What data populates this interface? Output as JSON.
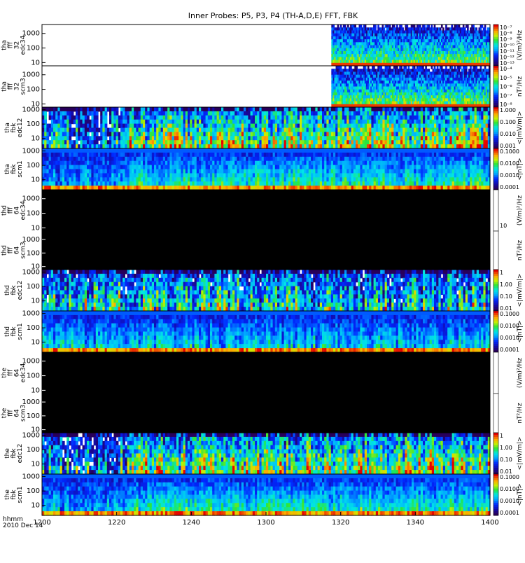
{
  "chart_data": {
    "type": "heatmap",
    "title": "Inner Probes: P5, P3, P4 (TH-A,D,E) FFT, FBK",
    "time_unit_label": "hhmm",
    "date_label": "2010 Dec 14",
    "x_ticks": [
      "1200",
      "1220",
      "1240",
      "1300",
      "1320",
      "1340",
      "1400"
    ],
    "x_range_min": [
      0,
      120
    ],
    "panels": [
      {
        "label": [
          "tha",
          "fff",
          "32",
          "edc34"
        ],
        "y_ticks": [
          "10",
          "100",
          "1000"
        ],
        "y_range_hz": [
          6,
          4096
        ],
        "colorbar_label": "(V/m)²/Hz",
        "colorbar_ticks": [
          "10⁻¹³",
          "10⁻¹²",
          "10⁻¹¹",
          "10⁻¹⁰",
          "10⁻⁹",
          "10⁻⁸",
          "10⁻⁷"
        ],
        "data_start_min": 77.5,
        "black": false,
        "scale": "log"
      },
      {
        "label": [
          "tha",
          "fff",
          "32",
          "scm3"
        ],
        "y_ticks": [
          "10",
          "100",
          "1000"
        ],
        "y_range_hz": [
          6,
          4096
        ],
        "colorbar_label": "nT²/Hz",
        "colorbar_ticks": [
          "10⁻⁸",
          "10⁻⁷",
          "10⁻⁶",
          "10⁻⁵",
          "10⁻⁴"
        ],
        "data_start_min": 77.5,
        "black": false,
        "scale": "log"
      },
      {
        "label": [
          "tha",
          "fbk",
          "edc12"
        ],
        "y_ticks": [
          "10",
          "100",
          "1000"
        ],
        "y_range_hz": [
          2,
          1500
        ],
        "colorbar_label": "<|mV/m|>",
        "colorbar_ticks": [
          "0.001",
          "0.010",
          "0.100",
          "1.000"
        ],
        "data_start_min": 0,
        "black": false,
        "scale": "log"
      },
      {
        "label": [
          "tha",
          "fbk",
          "scm1"
        ],
        "y_ticks": [
          "10",
          "100",
          "1000"
        ],
        "y_range_hz": [
          2,
          1500
        ],
        "colorbar_label": "<|nT|>",
        "colorbar_ticks": [
          "0.0001",
          "0.0010",
          "0.0100",
          "0.1000"
        ],
        "data_start_min": 0,
        "black": false,
        "scale": "log"
      },
      {
        "label": [
          "thd",
          "fff",
          "64",
          "edc34"
        ],
        "y_ticks": [
          "10",
          "100",
          "1000"
        ],
        "y_range_hz": [
          6,
          4096
        ],
        "colorbar_label": "(V/m)²/Hz",
        "colorbar_ticks": [
          "10"
        ],
        "data_start_min": 0,
        "black": true,
        "scale": "log"
      },
      {
        "label": [
          "thd",
          "fff",
          "64",
          "scm3"
        ],
        "y_ticks": [
          "10",
          "100",
          "1000"
        ],
        "y_range_hz": [
          6,
          4096
        ],
        "colorbar_label": "nT²/Hz",
        "colorbar_ticks": [],
        "data_start_min": 0,
        "black": true,
        "scale": "log"
      },
      {
        "label": [
          "thd",
          "fbk",
          "edc12"
        ],
        "y_ticks": [
          "10",
          "100",
          "1000"
        ],
        "y_range_hz": [
          2,
          1500
        ],
        "colorbar_label": "<|mV/m|>",
        "colorbar_ticks": [
          "0.01",
          "0.10",
          "1.00",
          "1"
        ],
        "data_start_min": 0,
        "black": false,
        "scale": "log"
      },
      {
        "label": [
          "thd",
          "fbk",
          "scm1"
        ],
        "y_ticks": [
          "10",
          "100",
          "1000"
        ],
        "y_range_hz": [
          2,
          1500
        ],
        "colorbar_label": "<|nT|>",
        "colorbar_ticks": [
          "0.0001",
          "0.0010",
          "0.0100",
          "0.1000"
        ],
        "data_start_min": 0,
        "black": false,
        "scale": "log"
      },
      {
        "label": [
          "the",
          "fff",
          "64",
          "edc34"
        ],
        "y_ticks": [
          "10",
          "100",
          "1000"
        ],
        "y_range_hz": [
          6,
          4096
        ],
        "colorbar_label": "(V/m)²/Hz",
        "colorbar_ticks": [],
        "data_start_min": 0,
        "black": true,
        "scale": "log"
      },
      {
        "label": [
          "the",
          "fff",
          "64",
          "scm3"
        ],
        "y_ticks": [
          "10",
          "100",
          "1000"
        ],
        "y_range_hz": [
          6,
          4096
        ],
        "colorbar_label": "nT²/Hz",
        "colorbar_ticks": [],
        "data_start_min": 0,
        "black": true,
        "scale": "log"
      },
      {
        "label": [
          "the",
          "fbk",
          "edc12"
        ],
        "y_ticks": [
          "10",
          "100",
          "1000"
        ],
        "y_range_hz": [
          2,
          1500
        ],
        "colorbar_label": "<|mV/m|>",
        "colorbar_ticks": [
          "0.01",
          "0.10",
          "1.00",
          "1"
        ],
        "data_start_min": 0,
        "black": false,
        "scale": "log"
      },
      {
        "label": [
          "the",
          "fbk",
          "scm1"
        ],
        "y_ticks": [
          "10",
          "100",
          "1000"
        ],
        "y_range_hz": [
          2,
          1500
        ],
        "colorbar_label": "<|nT|>",
        "colorbar_ticks": [
          "0.0001",
          "0.0010",
          "0.0100",
          "0.1000"
        ],
        "data_start_min": 0,
        "black": false,
        "scale": "log"
      }
    ]
  }
}
